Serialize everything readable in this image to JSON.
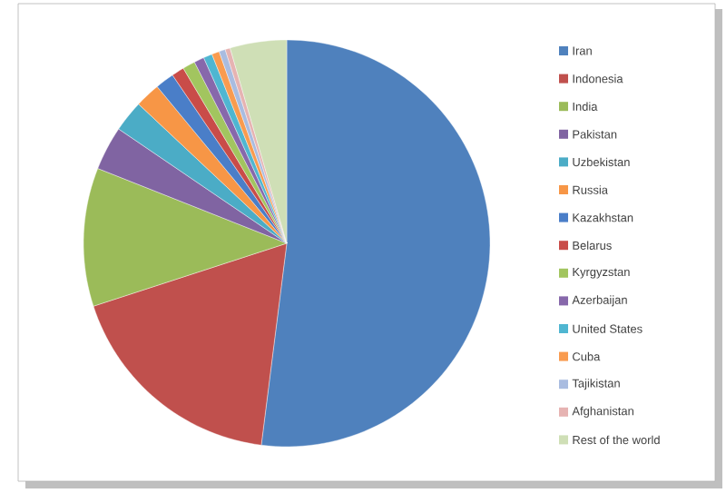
{
  "chart_data": {
    "type": "pie",
    "legend": "right",
    "categories": [
      "Iran",
      "Indonesia",
      "India",
      "Pakistan",
      "Uzbekistan",
      "Russia",
      "Kazakhstan",
      "Belarus",
      "Kyrgyzstan",
      "Azerbaijan",
      "United States",
      "Cuba",
      "Tajikistan",
      "Afghanistan",
      "Rest of the world"
    ],
    "values": [
      52,
      18,
      11,
      3.5,
      2.5,
      2,
      1.5,
      1,
      1,
      0.8,
      0.7,
      0.6,
      0.5,
      0.4,
      4.5
    ],
    "colors": [
      "#4f81bd",
      "#c0504d",
      "#9bbb59",
      "#8064a2",
      "#4bacc6",
      "#f79646",
      "#4a7ec8",
      "#c94c49",
      "#a2c55f",
      "#8768ab",
      "#4fb6d1",
      "#f99b4f",
      "#a9bce0",
      "#e6b3b2",
      "#cfdfb6"
    ]
  }
}
